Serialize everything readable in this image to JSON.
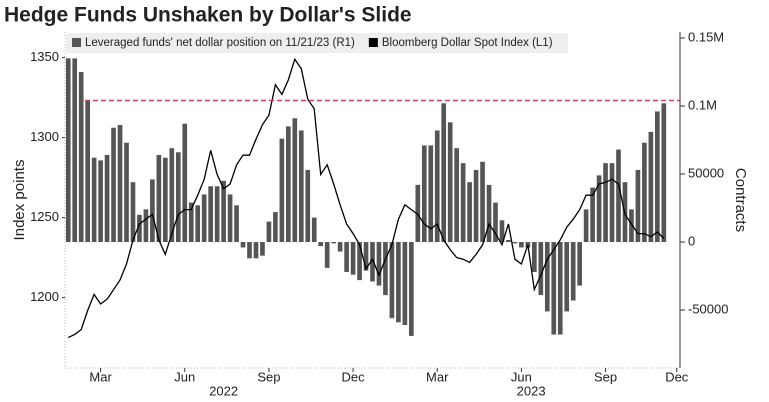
{
  "chart_data": {
    "type": "bar-line",
    "title": "Hedge Funds Unshaken by Dollar's Slide",
    "ylabel": "Index points",
    "y2label": "Contracts",
    "categories": [
      null,
      null,
      null,
      null,
      null,
      "Mar",
      null,
      null,
      null,
      null,
      null,
      null,
      null,
      null,
      null,
      null,
      null,
      null,
      "Jun",
      null,
      null,
      null,
      null,
      null,
      null,
      null,
      null,
      null,
      null,
      null,
      null,
      "Sep",
      null,
      null,
      null,
      null,
      null,
      null,
      null,
      null,
      null,
      null,
      null,
      null,
      "Dec",
      null,
      null,
      null,
      null,
      null,
      null,
      null,
      null,
      null,
      null,
      null,
      null,
      "Mar",
      null,
      null,
      null,
      null,
      null,
      null,
      null,
      null,
      null,
      null,
      null,
      null,
      "Jun",
      null,
      null,
      null,
      null,
      null,
      null,
      null,
      null,
      null,
      null,
      null,
      null,
      "Sep",
      null,
      null,
      null,
      null,
      null,
      null,
      null,
      null,
      null,
      null,
      "Dec"
    ],
    "x_group_labels": [
      "2022",
      "2023"
    ],
    "ylim": [
      1156,
      1366
    ],
    "yticks": [
      1200,
      1250,
      1300,
      1350
    ],
    "y2lim": [
      -92600,
      154400
    ],
    "y2ticks": [
      -50000,
      0,
      50000,
      {
        "value": 100000,
        "label": "0.1M"
      },
      {
        "value": 150000,
        "label": "0.15M"
      }
    ],
    "reference_line": {
      "value": 104000,
      "axis": "y2",
      "color": "#e8384f"
    },
    "series": [
      {
        "name": "Leveraged funds' net dollar position on 11/21/23 (R1)",
        "type": "bar",
        "axis": "y2",
        "color": "#555555",
        "values": [
          135000,
          135000,
          125000,
          104000,
          62000,
          60000,
          64000,
          84000,
          86000,
          73000,
          44000,
          20000,
          24000,
          46000,
          64000,
          62000,
          69000,
          66000,
          87000,
          29000,
          27000,
          35000,
          41000,
          41000,
          45000,
          35000,
          27000,
          -4000,
          -12000,
          -12000,
          -10000,
          15000,
          22000,
          76000,
          85000,
          91000,
          82000,
          53000,
          18000,
          -3000,
          -19000,
          -1000,
          -7000,
          -22000,
          -24000,
          -28000,
          -21000,
          -29000,
          -32000,
          -39000,
          -56000,
          -59000,
          -61000,
          -69000,
          42000,
          71000,
          71000,
          82000,
          102000,
          88000,
          69000,
          58000,
          44000,
          53000,
          59000,
          42000,
          29000,
          16000,
          1500,
          -1000,
          -4000,
          -4000,
          -22000,
          -39000,
          -51000,
          -68000,
          -68000,
          -51000,
          -43000,
          -32000,
          24000,
          40000,
          49000,
          58000,
          58000,
          68000,
          44000,
          24000,
          53000,
          73000,
          81000,
          96000,
          102000,
          null,
          null
        ]
      },
      {
        "name": "Bloomberg Dollar Spot Index (L1)",
        "type": "line",
        "axis": "y",
        "color": "#000000",
        "values": [
          1175,
          1177,
          1180,
          1192,
          1202,
          1196,
          1199,
          1205,
          1211,
          1221,
          1236,
          1246,
          1249,
          1252,
          1236,
          1227,
          1240,
          1252,
          1255,
          1255,
          1264,
          1274,
          1292,
          1277,
          1268,
          1271,
          1283,
          1289,
          1289,
          1299,
          1308,
          1314,
          1333,
          1327,
          1336,
          1349,
          1343,
          1324,
          1318,
          1277,
          1283,
          1271,
          1258,
          1246,
          1240,
          1233,
          1218,
          1224,
          1214,
          1224,
          1233,
          1249,
          1258,
          1255,
          1252,
          1246,
          1243,
          1246,
          1236,
          1230,
          1225,
          1224,
          1222,
          1227,
          1233,
          1246,
          1240,
          1233,
          1246,
          1224,
          1221,
          1233,
          1205,
          1214,
          1224,
          1230,
          1236,
          1244,
          1249,
          1255,
          1264,
          1264,
          1271,
          1272,
          1274,
          1271,
          1252,
          1246,
          1240,
          1240,
          1238,
          1241,
          1237,
          null,
          null
        ]
      }
    ]
  }
}
